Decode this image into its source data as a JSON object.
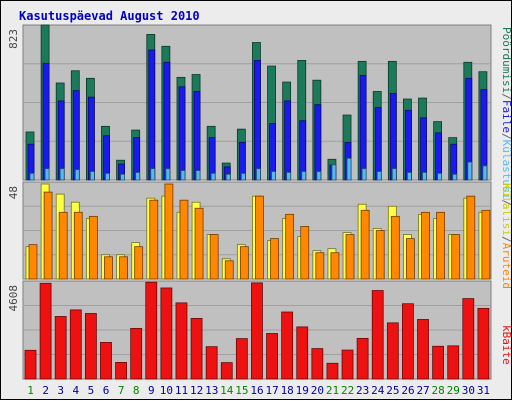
{
  "chart_data": [
    {
      "type": "bar",
      "title": "Kasutuspäevad August 2010",
      "categories": [
        "1",
        "2",
        "3",
        "4",
        "5",
        "6",
        "7",
        "8",
        "9",
        "10",
        "11",
        "12",
        "13",
        "14",
        "15",
        "16",
        "17",
        "18",
        "19",
        "20",
        "21",
        "22",
        "23",
        "24",
        "25",
        "26",
        "27",
        "28",
        "29",
        "30",
        "31"
      ],
      "weekend_days": [
        "1",
        "7",
        "8",
        "14",
        "15",
        "21",
        "22",
        "28",
        "29"
      ],
      "ylabel_max": "823",
      "ylim": [
        0,
        823
      ],
      "series": [
        {
          "name": "Pöördumisi",
          "color": "#1c7a5a",
          "values": [
            255,
            823,
            515,
            580,
            540,
            285,
            105,
            265,
            773,
            710,
            545,
            560,
            285,
            90,
            270,
            730,
            605,
            520,
            635,
            530,
            110,
            345,
            630,
            470,
            630,
            430,
            435,
            310,
            225,
            625,
            575
          ]
        },
        {
          "name": "Faile",
          "color": "#1a1aee",
          "values": [
            190,
            620,
            420,
            475,
            440,
            235,
            85,
            225,
            690,
            625,
            495,
            470,
            225,
            70,
            200,
            635,
            300,
            420,
            315,
            400,
            80,
            200,
            555,
            385,
            460,
            370,
            330,
            250,
            190,
            540,
            480
          ]
        },
        {
          "name": "Külastusi",
          "color": "#55bbee",
          "values": [
            35,
            60,
            60,
            55,
            45,
            35,
            30,
            40,
            60,
            60,
            50,
            50,
            35,
            30,
            35,
            60,
            45,
            40,
            45,
            45,
            80,
            115,
            60,
            45,
            60,
            40,
            40,
            35,
            30,
            95,
            75
          ]
        }
      ]
    },
    {
      "type": "bar",
      "ylabel_max": "48",
      "ylim": [
        0,
        48
      ],
      "series": [
        {
          "name": "Külalisi",
          "color": "#ffff44",
          "values": [
            16,
            47,
            42,
            38,
            30,
            12,
            12,
            18,
            40,
            41,
            33,
            38,
            22,
            10,
            17,
            41,
            19,
            30,
            21,
            14,
            15,
            23,
            37,
            25,
            36,
            22,
            32,
            30,
            22,
            40,
            33
          ]
        },
        {
          "name": "Aruteid",
          "color": "#ff8800",
          "values": [
            17,
            43,
            33,
            33,
            31,
            11,
            11,
            16,
            39,
            47,
            39,
            35,
            22,
            9,
            16,
            41,
            20,
            32,
            26,
            13,
            13,
            22,
            34,
            24,
            31,
            20,
            33,
            33,
            22,
            41,
            34
          ]
        }
      ]
    },
    {
      "type": "bar",
      "ylabel_max": "4608",
      "ylim": [
        0,
        4608
      ],
      "series": [
        {
          "name": "kBaite",
          "color": "#ee1111",
          "values": [
            1350,
            4500,
            2940,
            3250,
            3080,
            1720,
            780,
            2380,
            4550,
            4280,
            3580,
            2850,
            1520,
            770,
            1900,
            4520,
            2140,
            3150,
            2450,
            1430,
            740,
            1360,
            1910,
            4160,
            2640,
            3540,
            2800,
            1540,
            1560,
            3780,
            3320
          ]
        }
      ]
    }
  ],
  "right_legend": {
    "top": [
      {
        "text": "Pöördumisi",
        "color": "#1c7a5a"
      },
      {
        "text": "/",
        "color": "#666666"
      },
      {
        "text": "Faile",
        "color": "#1a1aee"
      },
      {
        "text": "/",
        "color": "#666666"
      },
      {
        "text": "Külastusi",
        "color": "#55bbee"
      },
      {
        "text": "/",
        "color": "#666666"
      }
    ],
    "middle": [
      {
        "text": "Külalisi",
        "color": "#cccc00"
      },
      {
        "text": "/",
        "color": "#666666"
      },
      {
        "text": "Aruteid",
        "color": "#ff8800"
      }
    ],
    "bottom": [
      {
        "text": "kBaite",
        "color": "#ee1111"
      }
    ]
  },
  "colors": {
    "plot_bg": "#c0c0c0",
    "grid": "#a0a0a0",
    "weekday_label": "#0000aa",
    "weekend_label": "#008800"
  }
}
